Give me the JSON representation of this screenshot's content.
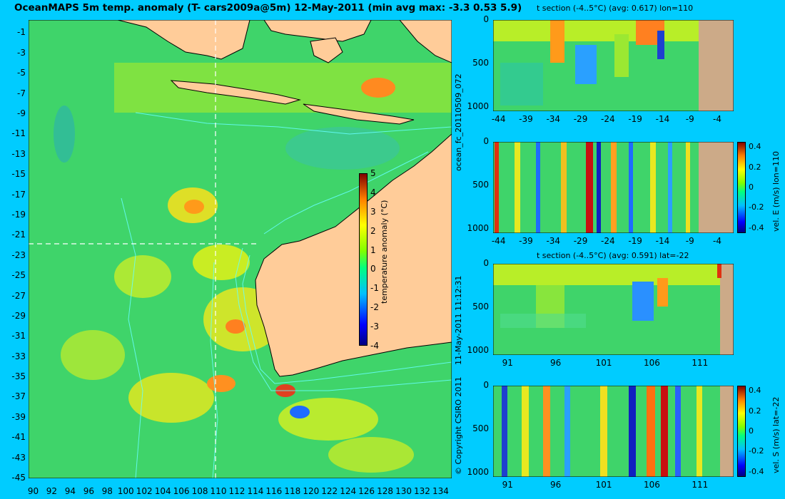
{
  "title": "OceanMAPS 5m temp. anomaly (T- cars2009a@5m) 12-May-2011 (min avg max: -3.3 0.53 5.9)",
  "colors": {
    "background": "#00ccff",
    "land": "#ffcc99",
    "land_section": "#ccaa88",
    "contour": "#66ffff"
  },
  "side_text": {
    "run": "ocean_fc_20110509_072",
    "timestamp": "11-May-2011 11:12:31",
    "copyright": "© Copyright CSIRO 2011"
  },
  "chart_data": [
    {
      "id": "map",
      "type": "heatmap",
      "xticks": [
        "90",
        "92",
        "94",
        "96",
        "98",
        "100",
        "102",
        "104",
        "106",
        "108",
        "110",
        "112",
        "114",
        "116",
        "118",
        "120",
        "122",
        "124",
        "126",
        "128",
        "130",
        "132",
        "134"
      ],
      "yticks": [
        "-1",
        "-3",
        "-5",
        "-7",
        "-9",
        "-11",
        "-13",
        "-15",
        "-17",
        "-19",
        "-21",
        "-23",
        "-25",
        "-27",
        "-29",
        "-31",
        "-33",
        "-35",
        "-37",
        "-39",
        "-41",
        "-43",
        "-45"
      ],
      "xlim": [
        89.5,
        135.2
      ],
      "ylim": [
        -45,
        0.3
      ],
      "crosshair": {
        "lon": 110,
        "lat": -22
      },
      "colorbar": {
        "label": "temperature anomaly (°C)",
        "ticks": [
          "5",
          "4",
          "3",
          "2",
          "1",
          "0",
          "-1",
          "-2",
          "-3",
          "-4"
        ],
        "range": [
          -4,
          5
        ]
      }
    },
    {
      "id": "t-section-lon",
      "type": "heatmap",
      "title": "t section (-4..5°C) (avg: 0.617) lon=110",
      "xticks": [
        "-44",
        "-39",
        "-34",
        "-29",
        "-24",
        "-19",
        "-14",
        "-9",
        "-4"
      ],
      "yticks": [
        "0",
        "500",
        "1000"
      ],
      "xlim": [
        -45,
        -1
      ],
      "ylim": [
        1050,
        0
      ]
    },
    {
      "id": "vel-e-section",
      "type": "heatmap",
      "xticks": [
        "-44",
        "-39",
        "-34",
        "-29",
        "-24",
        "-19",
        "-14",
        "-9",
        "-4"
      ],
      "yticks": [
        "0",
        "500",
        "1000"
      ],
      "xlim": [
        -45,
        -1
      ],
      "ylim": [
        1050,
        0
      ],
      "colorbar": {
        "label": "vel. E (m/s) lon=110",
        "ticks": [
          "0.4",
          "0.2",
          "0",
          "-0.2",
          "-0.4"
        ],
        "range": [
          -0.45,
          0.45
        ]
      }
    },
    {
      "id": "t-section-lat",
      "type": "heatmap",
      "title": "t section (-4..5°C) (avg: 0.591) lat=-22",
      "xticks": [
        "91",
        "96",
        "101",
        "106",
        "111"
      ],
      "yticks": [
        "0",
        "500",
        "1000"
      ],
      "xlim": [
        89.5,
        114.5
      ],
      "ylim": [
        1050,
        0
      ]
    },
    {
      "id": "vel-s-section",
      "type": "heatmap",
      "xticks": [
        "91",
        "96",
        "101",
        "106",
        "111"
      ],
      "yticks": [
        "0",
        "500",
        "1000"
      ],
      "xlim": [
        89.5,
        114.5
      ],
      "ylim": [
        1050,
        0
      ],
      "colorbar": {
        "label": "vel. S (m/s) lat=-22",
        "ticks": [
          "0.4",
          "0.2",
          "0",
          "-0.2",
          "-0.4"
        ],
        "range": [
          -0.45,
          0.45
        ]
      }
    }
  ]
}
